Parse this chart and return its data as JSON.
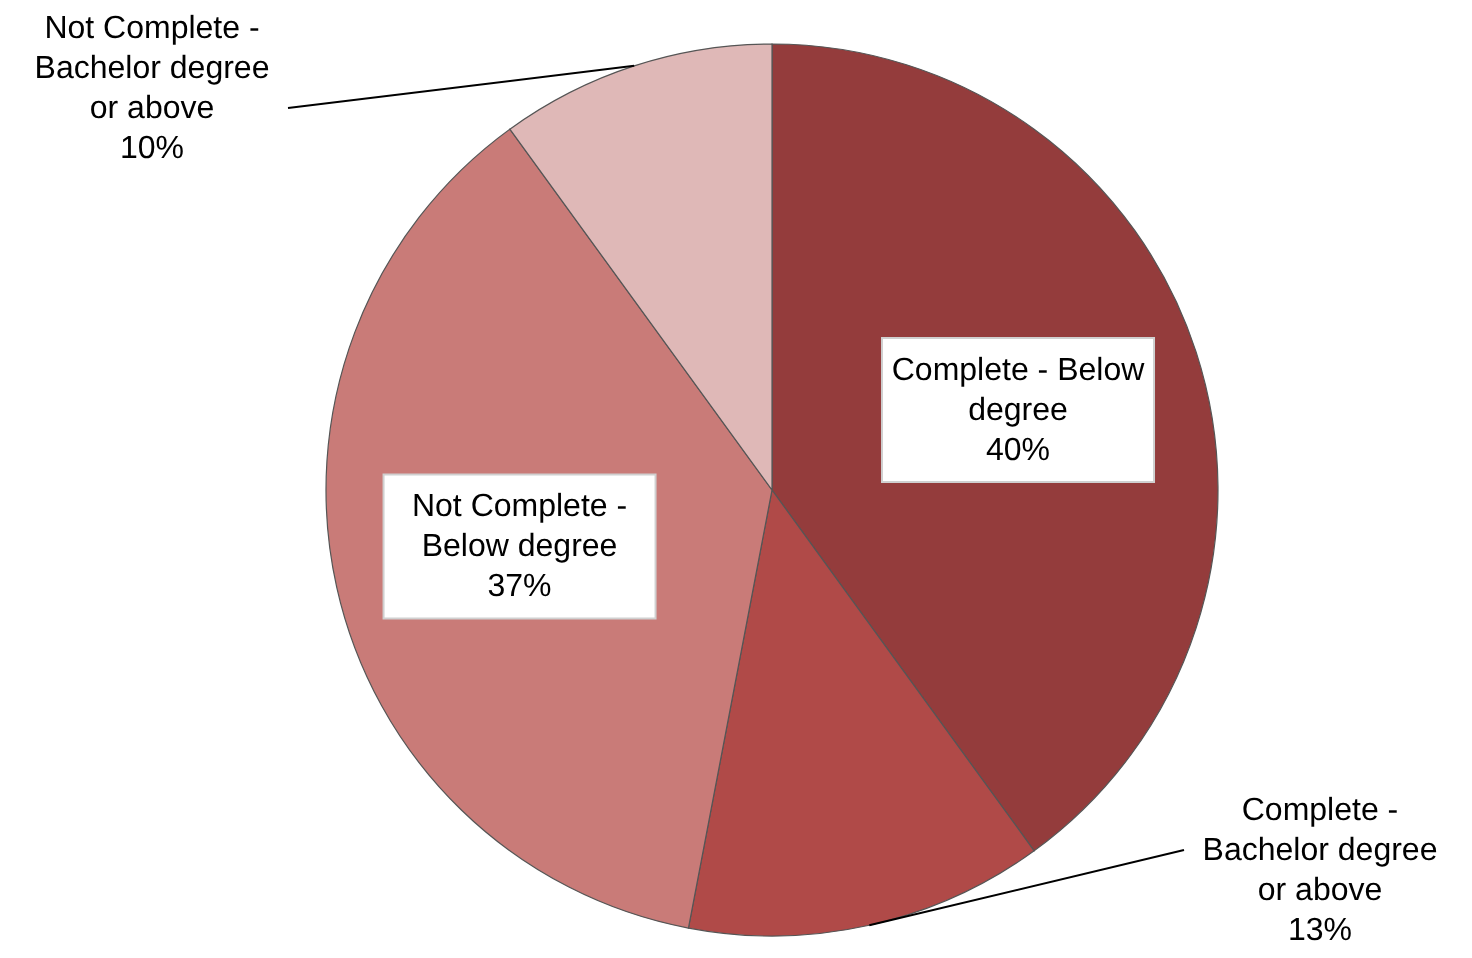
{
  "chart_data": {
    "type": "pie",
    "categories": [
      "Complete - Below degree",
      "Complete - Bachelor degree or above",
      "Not Complete - Below degree",
      "Not Complete - Bachelor degree or above"
    ],
    "values": [
      40,
      13,
      37,
      10
    ],
    "colors": [
      "#943c3c",
      "#b04a48",
      "#c97b78",
      "#dfb8b7"
    ],
    "value_labels": [
      "40%",
      "13%",
      "37%",
      "10%"
    ]
  }
}
